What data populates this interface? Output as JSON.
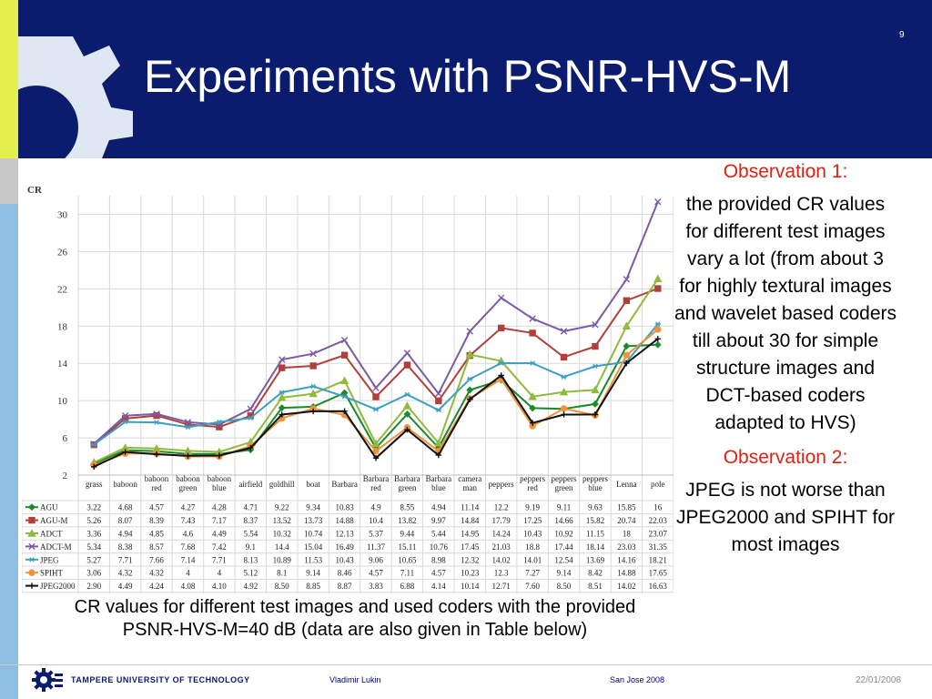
{
  "slide": {
    "title": "Experiments with PSNR-HVS-M",
    "number": "9",
    "caption": "CR values for different test images and used coders with the provided PSNR-HVS-M=40 dB (data are also given in Table below)",
    "observations": [
      {
        "label": "Observation 1:",
        "text": "the provided CR values for different test images vary a lot (from about 3 for highly textural images and wavelet based coders till about 30 for simple structure images and DCT-based coders adapted to HVS)"
      },
      {
        "label": "Observation 2:",
        "text": "JPEG is not worse than JPEG2000 and SPIHT for most images"
      }
    ],
    "footer": {
      "university": "TAMPERE UNIVERSITY OF TECHNOLOGY",
      "author": "Vladimir Lukin",
      "place": "San Jose 2008",
      "date": "22/01/2008"
    },
    "colors": {
      "header_bg": "#0b1c6e",
      "observation_label": "#e02010"
    }
  },
  "chart_data": {
    "type": "line",
    "ylabel": "CR",
    "yticks": [
      2,
      6,
      10,
      14,
      18,
      22,
      26,
      30
    ],
    "ylim": [
      2,
      32
    ],
    "grid": true,
    "categories": [
      "grass",
      "baboon",
      "baboon red",
      "baboon green",
      "baboon blue",
      "airfield",
      "goldhill",
      "boat",
      "Barbara",
      "Barbara red",
      "Barbara green",
      "Barbara blue",
      "camera man",
      "peppers",
      "peppers red",
      "peppers green",
      "peppers blue",
      "Lenna",
      "pole"
    ],
    "series": [
      {
        "name": "AGU",
        "color": "#1a8a2a",
        "marker": "diamond",
        "values": [
          3.22,
          4.68,
          4.57,
          4.27,
          4.28,
          4.71,
          9.22,
          9.34,
          10.83,
          4.9,
          8.55,
          4.94,
          11.14,
          12.2,
          9.19,
          9.11,
          9.63,
          15.85,
          16
        ],
        "labels": [
          "3.22",
          "4.68",
          "4.57",
          "4.27",
          "4.28",
          "4.71",
          "9.22",
          "9.34",
          "10.83",
          "4.9",
          "8.55",
          "4.94",
          "11.14",
          "12.2",
          "9.19",
          "9.11",
          "9.63",
          "15.85",
          "16"
        ]
      },
      {
        "name": "AGU-M",
        "color": "#b0403c",
        "marker": "square",
        "values": [
          5.26,
          8.07,
          8.39,
          7.43,
          7.17,
          8.37,
          13.52,
          13.73,
          14.88,
          10.4,
          13.82,
          9.97,
          14.84,
          17.79,
          17.25,
          14.66,
          15.82,
          20.74,
          22.03
        ],
        "labels": [
          "5.26",
          "8.07",
          "8.39",
          "7.43",
          "7.17",
          "8.37",
          "13.52",
          "13.73",
          "14.88",
          "10.4",
          "13.82",
          "9.97",
          "14.84",
          "17.79",
          "17.25",
          "14.66",
          "15.82",
          "20.74",
          "22.03"
        ]
      },
      {
        "name": "ADCT",
        "color": "#8fba3c",
        "marker": "triangle",
        "values": [
          3.36,
          4.94,
          4.85,
          4.6,
          4.49,
          5.54,
          10.32,
          10.74,
          12.13,
          5.37,
          9.44,
          5.44,
          14.95,
          14.24,
          10.43,
          10.92,
          11.15,
          18,
          23.07
        ],
        "labels": [
          "3.36",
          "4.94",
          "4.85",
          "4.6",
          "4.49",
          "5.54",
          "10.32",
          "10.74",
          "12.13",
          "5.37",
          "9.44",
          "5.44",
          "14.95",
          "14.24",
          "10.43",
          "10.92",
          "11.15",
          "18",
          "23.07"
        ]
      },
      {
        "name": "ADCT-M",
        "color": "#7b5aa6",
        "marker": "x",
        "values": [
          5.34,
          8.38,
          8.57,
          7.68,
          7.42,
          9.1,
          14.4,
          15.04,
          16.49,
          11.37,
          15.11,
          10.76,
          17.45,
          21.03,
          18.8,
          17.44,
          18.14,
          23.03,
          31.35
        ],
        "labels": [
          "5.34",
          "8.38",
          "8.57",
          "7.68",
          "7.42",
          "9.1",
          "14.4",
          "15.04",
          "16.49",
          "11.37",
          "15.11",
          "10.76",
          "17.45",
          "21.03",
          "18.8",
          "17.44",
          "18.14",
          "23.03",
          "31.35"
        ]
      },
      {
        "name": "JPEG",
        "color": "#3d9fc0",
        "marker": "asterisk",
        "values": [
          5.27,
          7.71,
          7.66,
          7.14,
          7.71,
          8.13,
          10.89,
          11.53,
          10.43,
          9.06,
          10.65,
          8.98,
          12.32,
          14.02,
          14.01,
          12.54,
          13.69,
          14.16,
          18.21
        ],
        "labels": [
          "5.27",
          "7.71",
          "7.66",
          "7.14",
          "7.71",
          "8.13",
          "10.89",
          "11.53",
          "10.43",
          "9.06",
          "10.65",
          "8.98",
          "12.32",
          "14.02",
          "14.01",
          "12.54",
          "13.69",
          "14.16",
          "18.21"
        ]
      },
      {
        "name": "SPIHT",
        "color": "#f0923a",
        "marker": "circle",
        "values": [
          3.06,
          4.32,
          4.32,
          4,
          4,
          5.12,
          8.1,
          9.14,
          8.46,
          4.57,
          7.11,
          4.57,
          10.23,
          12.3,
          7.27,
          9.14,
          8.42,
          14.88,
          17.65
        ],
        "labels": [
          "3.06",
          "4.32",
          "4.32",
          "4",
          "4",
          "5.12",
          "8.1",
          "9.14",
          "8.46",
          "4.57",
          "7.11",
          "4.57",
          "10.23",
          "12.3",
          "7.27",
          "9.14",
          "8.42",
          "14.88",
          "17.65"
        ]
      },
      {
        "name": "JPEG2000",
        "color": "#111111",
        "marker": "plus",
        "values": [
          2.9,
          4.49,
          4.24,
          4.08,
          4.1,
          4.92,
          8.5,
          8.85,
          8.87,
          3.83,
          6.88,
          4.14,
          10.14,
          12.71,
          7.6,
          8.5,
          8.51,
          14.02,
          16.63
        ],
        "labels": [
          "2.90",
          "4.49",
          "4.24",
          "4.08",
          "4.10",
          "4.92",
          "8.50",
          "8.85",
          "8.87",
          "3.83",
          "6.88",
          "4.14",
          "10.14",
          "12.71",
          "7.60",
          "8.50",
          "8.51",
          "14.02",
          "16.63"
        ]
      }
    ]
  }
}
